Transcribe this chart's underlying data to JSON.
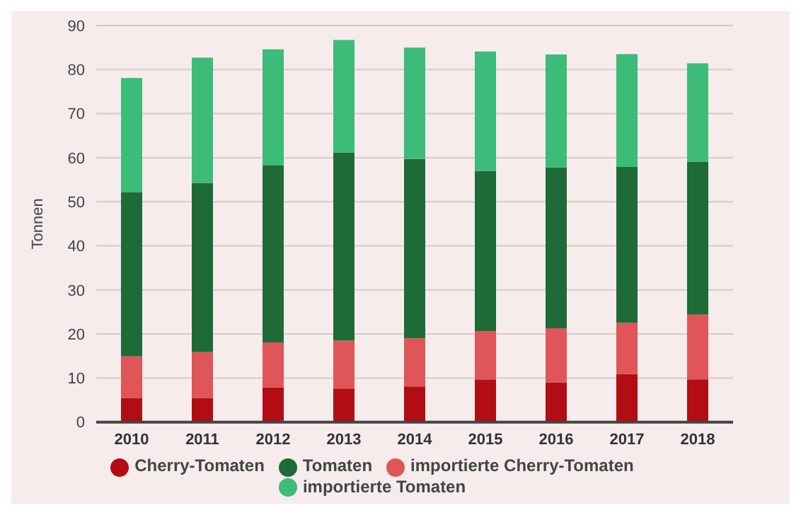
{
  "chart_data": {
    "type": "bar",
    "stacked": true,
    "ylabel": "Tonnen",
    "categories": [
      "2010",
      "2011",
      "2012",
      "2013",
      "2014",
      "2015",
      "2016",
      "2017",
      "2018"
    ],
    "series": [
      {
        "name": "Cherry-Tomaten",
        "color": "#b20d14",
        "values": [
          5.5,
          5.5,
          7.9,
          7.6,
          8.1,
          9.6,
          9.0,
          10.9,
          9.7
        ]
      },
      {
        "name": "importierte Cherry-Tomaten",
        "color": "#e05558",
        "values": [
          9.4,
          10.4,
          10.2,
          10.9,
          10.9,
          11.0,
          12.3,
          11.6,
          14.7
        ]
      },
      {
        "name": "Tomaten",
        "color": "#1e6b37",
        "values": [
          37.3,
          38.4,
          40.1,
          42.7,
          40.7,
          36.4,
          36.5,
          35.4,
          34.7
        ]
      },
      {
        "name": "importierte Tomaten",
        "color": "#3dbb78",
        "values": [
          25.9,
          28.4,
          26.4,
          25.5,
          25.3,
          27.1,
          25.6,
          25.6,
          22.3
        ]
      }
    ],
    "ylim": [
      0,
      90
    ],
    "yticks": [
      0,
      10,
      20,
      30,
      40,
      50,
      60,
      70,
      80,
      90
    ],
    "grid": "y",
    "legend": "bottom"
  }
}
